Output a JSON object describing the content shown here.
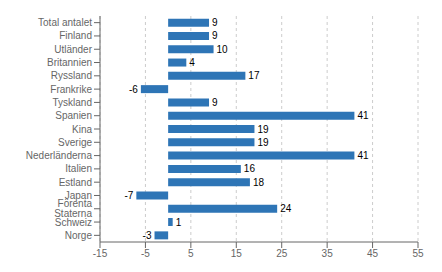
{
  "chart_data": {
    "type": "bar",
    "orientation": "horizontal",
    "categories": [
      "Norge",
      "Schweiz",
      "Förenta Staterna",
      "Japan",
      "Estland",
      "Italien",
      "Nederländerna",
      "Sverige",
      "Kina",
      "Spanien",
      "Tyskland",
      "Frankrike",
      "Ryssland",
      "Britannien",
      "Utländer",
      "Finland",
      "Total antalet"
    ],
    "values": [
      -3,
      1,
      24,
      -7,
      18,
      16,
      41,
      19,
      19,
      41,
      9,
      -6,
      17,
      4,
      10,
      9,
      9
    ],
    "color": "#2E75B6",
    "xlim": [
      -15,
      55
    ],
    "xticks": [
      -15,
      -5,
      5,
      15,
      25,
      35,
      45,
      55
    ],
    "grid": true,
    "data_labels": true
  }
}
